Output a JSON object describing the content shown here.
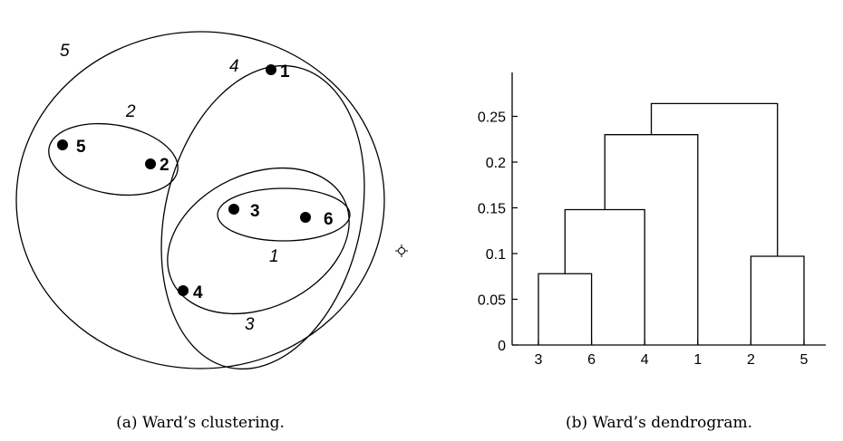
{
  "clustering": {
    "points": [
      {
        "id": "1",
        "label": "1"
      },
      {
        "id": "2",
        "label": "2"
      },
      {
        "id": "3",
        "label": "3"
      },
      {
        "id": "4",
        "label": "4"
      },
      {
        "id": "5",
        "label": "5"
      },
      {
        "id": "6",
        "label": "6"
      }
    ],
    "clusters": [
      {
        "id": "1",
        "label": "1",
        "members": [
          "3",
          "6"
        ]
      },
      {
        "id": "2",
        "label": "2",
        "members": [
          "5",
          "2"
        ]
      },
      {
        "id": "3",
        "label": "3",
        "members": [
          "3",
          "6",
          "4"
        ]
      },
      {
        "id": "4",
        "label": "4",
        "members": [
          "3",
          "6",
          "4",
          "1"
        ]
      },
      {
        "id": "5",
        "label": "5",
        "members": [
          "1",
          "2",
          "3",
          "4",
          "5",
          "6"
        ]
      }
    ],
    "caption": "(a) Ward’s clustering."
  },
  "chart_data": {
    "type": "dendrogram",
    "leaves": [
      "3",
      "6",
      "4",
      "1",
      "2",
      "5"
    ],
    "yticks": [
      "0",
      "0.05",
      "0.1",
      "0.15",
      "0.2",
      "0.25"
    ],
    "ylim": [
      0,
      0.29
    ],
    "merges": [
      {
        "left": "3",
        "right": "6",
        "height": 0.078
      },
      {
        "left": "{3,6}",
        "right": "4",
        "height": 0.148
      },
      {
        "left": "{3,4,6}",
        "right": "1",
        "height": 0.23
      },
      {
        "left": "2",
        "right": "5",
        "height": 0.097
      },
      {
        "left": "{1,3,4,6}",
        "right": "{2,5}",
        "height": 0.264
      }
    ],
    "xlabel": "",
    "ylabel": "",
    "caption": "(b) Ward’s dendrogram."
  }
}
